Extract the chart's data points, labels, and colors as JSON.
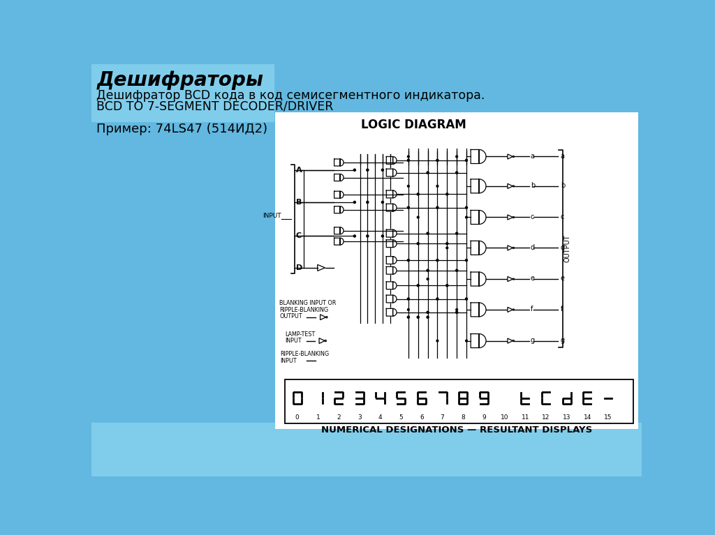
{
  "title": "Дешифраторы",
  "subtitle_line1": "Дешифратор BCD кода в код семисегментного индикатора.",
  "subtitle_line2": "BCD TO 7-SEGMENT DECODER/DRIVER",
  "example_text": "Пример: 74LS47 (514ИД2)",
  "logic_diagram_title": "LOGIC DIAGRAM",
  "output_label": "OUTPUT",
  "input_label": "INPUT",
  "blanking_label1": "BLANKING INPUT OR",
  "blanking_label2": "RIPPLE-BLANKING",
  "blanking_label3": "OUTPUT",
  "lamp_test1": "LAMP-TEST",
  "lamp_test2": "INPUT",
  "ripple_blank1": "RIPPLE-BLANKING",
  "ripple_blank2": "INPUT",
  "numerical_label": "NUMERICAL DESIGNATIONS — RESULTANT DISPLAYS",
  "seg_patterns": {
    "0": [
      1,
      1,
      1,
      1,
      1,
      1,
      0
    ],
    "1": [
      0,
      1,
      1,
      0,
      0,
      0,
      0
    ],
    "2": [
      1,
      1,
      0,
      1,
      1,
      0,
      1
    ],
    "3": [
      1,
      1,
      1,
      1,
      0,
      0,
      1
    ],
    "4": [
      0,
      1,
      1,
      0,
      0,
      1,
      1
    ],
    "5": [
      1,
      0,
      1,
      1,
      0,
      1,
      1
    ],
    "6": [
      1,
      0,
      1,
      1,
      1,
      1,
      1
    ],
    "7": [
      1,
      1,
      1,
      0,
      0,
      0,
      0
    ],
    "8": [
      1,
      1,
      1,
      1,
      1,
      1,
      1
    ],
    "9": [
      1,
      1,
      1,
      1,
      0,
      1,
      1
    ],
    "10": [
      0,
      0,
      0,
      0,
      0,
      0,
      0
    ],
    "11": [
      0,
      0,
      0,
      1,
      1,
      1,
      1
    ],
    "12": [
      1,
      0,
      0,
      1,
      1,
      1,
      0
    ],
    "13": [
      0,
      1,
      1,
      1,
      1,
      0,
      1
    ],
    "14": [
      1,
      0,
      0,
      1,
      1,
      1,
      1
    ],
    "15": [
      0,
      0,
      0,
      0,
      0,
      0,
      1
    ]
  },
  "bg_blue": "#62b8e0",
  "bg_blue_bottom": "#80cceb",
  "panel_color": "#ffffff"
}
